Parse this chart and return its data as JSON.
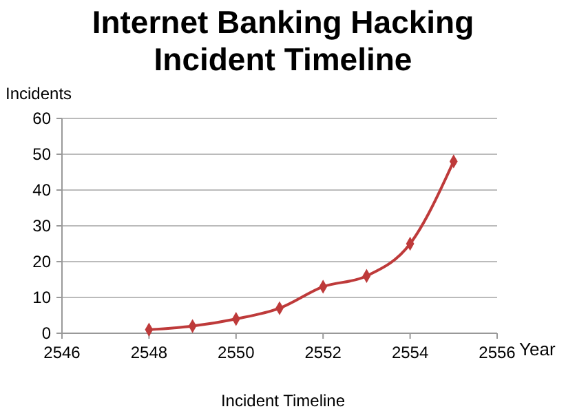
{
  "chart_data": {
    "type": "line",
    "title": "Internet Banking Hacking Incident Timeline",
    "xlabel": "Year",
    "ylabel": "Incidents",
    "x": [
      2548,
      2549,
      2550,
      2551,
      2552,
      2553,
      2554,
      2555
    ],
    "series": [
      {
        "color": "#be3a3a",
        "values": [
          1,
          2,
          4,
          7,
          13,
          16,
          25,
          48
        ]
      }
    ],
    "xlim": [
      2546,
      2556
    ],
    "xticks": [
      2546,
      2548,
      2550,
      2552,
      2554,
      2556
    ],
    "ylim": [
      0,
      60
    ],
    "yticks": [
      0,
      10,
      20,
      30,
      40,
      50,
      60
    ],
    "grid": "y",
    "marker": "diamond",
    "line_style": "solid",
    "annotations": [
      "Incident Timeline"
    ]
  }
}
